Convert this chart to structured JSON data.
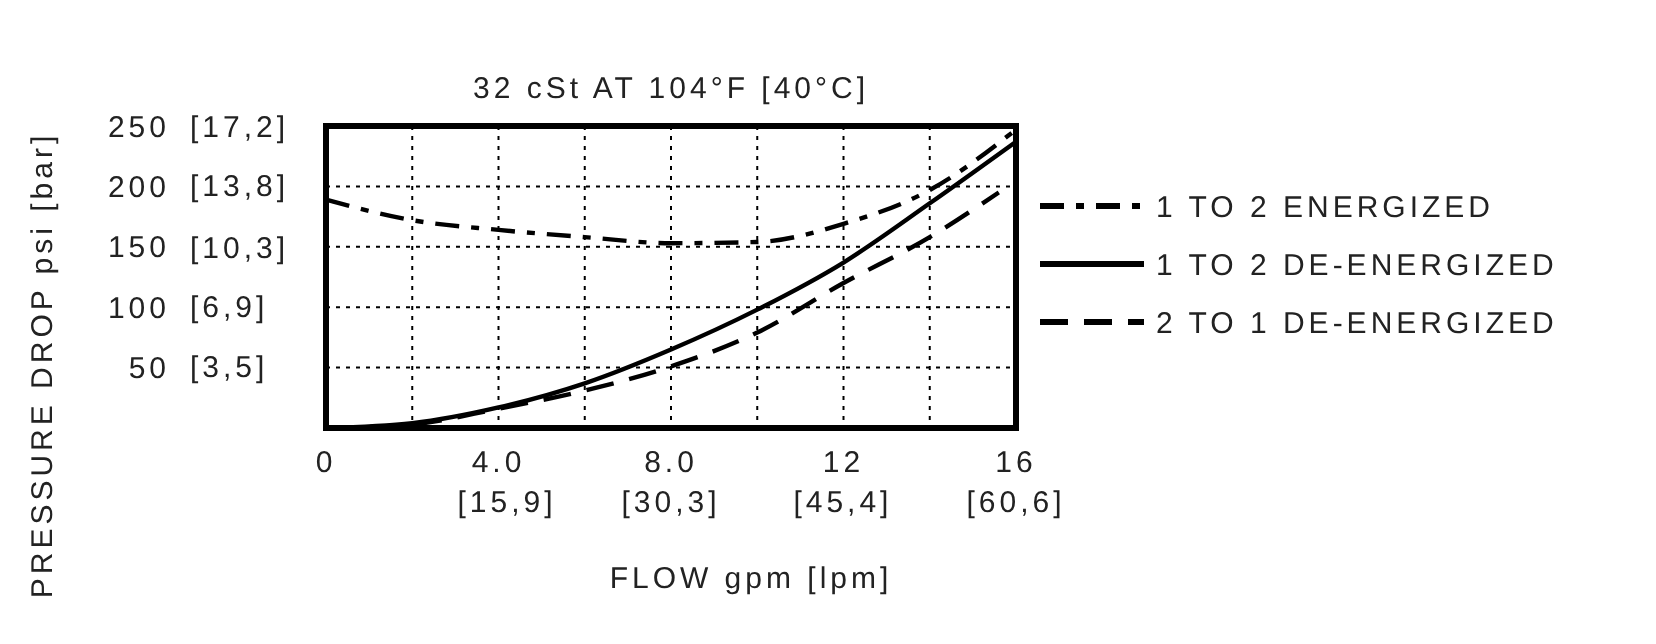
{
  "chart_data": {
    "type": "line",
    "title": "32 cSt AT 104°F [40°C]",
    "xlabel": "FLOW gpm [lpm]",
    "ylabel": "PRESSURE DROP psi [bar]",
    "xlim": [
      0,
      16
    ],
    "ylim": [
      0,
      250
    ],
    "xticks": [
      0,
      {
        "value": 2,
        "label": null
      },
      {
        "value": 4,
        "label": "4.0"
      },
      {
        "value": 6,
        "label": null
      },
      {
        "value": 8,
        "label": "8.0"
      },
      {
        "value": 10,
        "label": null
      },
      12,
      {
        "value": 14,
        "label": null
      },
      16
    ],
    "yticks": [
      50,
      100,
      150,
      200,
      250
    ],
    "x2lim": [
      0,
      60.6
    ],
    "x2ticks": [
      {
        "value": 15.9,
        "label": "[15,9]"
      },
      {
        "value": 30.3,
        "label": "[30,3]"
      },
      {
        "value": 45.4,
        "label": "[45,4]"
      },
      {
        "value": 60.6,
        "label": "[60,6]"
      }
    ],
    "y2lim": [
      0,
      17.2
    ],
    "y2ticks": [
      {
        "value": 3.5,
        "label": "[3,5]"
      },
      {
        "value": 6.9,
        "label": "[6,9]"
      },
      {
        "value": 10.3,
        "label": "[10,3]"
      },
      {
        "value": 13.8,
        "label": "[13,8]"
      },
      {
        "value": 17.2,
        "label": "[17,2]"
      }
    ],
    "grid": true,
    "legend": "right",
    "series": [
      {
        "name": "1 TO 2 ENERGIZED",
        "color": "#000000",
        "line_style": "dashdot",
        "x": [
          0,
          2,
          4,
          6,
          8,
          10,
          12,
          14,
          16
        ],
        "values": [
          189,
          172,
          164,
          158,
          153,
          154,
          169,
          197,
          247
        ]
      },
      {
        "name": "1 TO 2 DE-ENERGIZED",
        "color": "#000000",
        "line_style": "solid",
        "x": [
          0,
          2,
          4,
          6,
          8,
          10,
          12,
          14,
          16
        ],
        "values": [
          0,
          4,
          17,
          37,
          65,
          98,
          137,
          186,
          237
        ]
      },
      {
        "name": "2 TO 1 DE-ENERGIZED",
        "color": "#000000",
        "line_style": "dashed",
        "x": [
          0,
          2,
          4,
          6,
          8,
          10,
          12,
          14,
          15.6
        ],
        "values": [
          0,
          3,
          16,
          31,
          51,
          79,
          120,
          158,
          195
        ]
      }
    ]
  }
}
